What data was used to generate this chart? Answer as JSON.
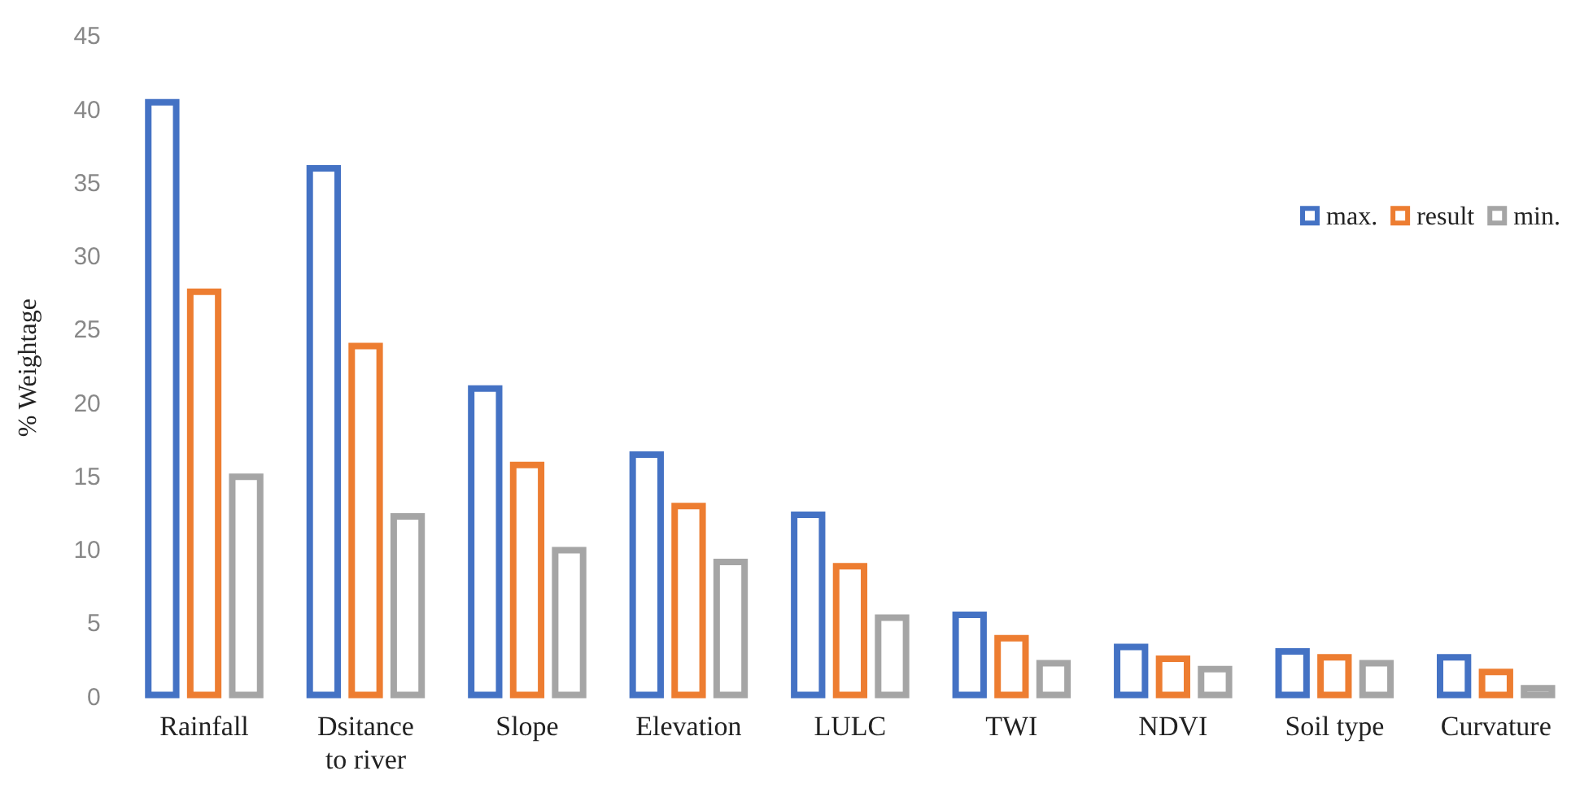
{
  "chart_data": {
    "type": "bar",
    "ylabel": "% Weightage",
    "categories": [
      "Rainfall",
      "Dsitance to river",
      "Slope",
      "Elevation",
      "LULC",
      "TWI",
      "NDVI",
      "Soil type",
      "Curvature"
    ],
    "series": [
      {
        "name": "max.",
        "color": "#4472c4",
        "values": [
          40.8,
          36.3,
          21.3,
          16.8,
          12.7,
          5.9,
          3.7,
          3.4,
          3.0
        ]
      },
      {
        "name": "result",
        "color": "#ed7d31",
        "values": [
          27.9,
          24.2,
          16.1,
          13.3,
          9.2,
          4.3,
          2.9,
          3.0,
          2.0
        ]
      },
      {
        "name": "min.",
        "color": "#a5a5a5",
        "values": [
          15.3,
          12.6,
          10.3,
          9.5,
          5.7,
          2.6,
          2.2,
          2.6,
          0.9
        ]
      }
    ],
    "ylim": [
      0,
      45
    ],
    "yticks": [
      0,
      5,
      10,
      15,
      20,
      25,
      30,
      35,
      40,
      45
    ],
    "grid": false,
    "legend": "right"
  }
}
